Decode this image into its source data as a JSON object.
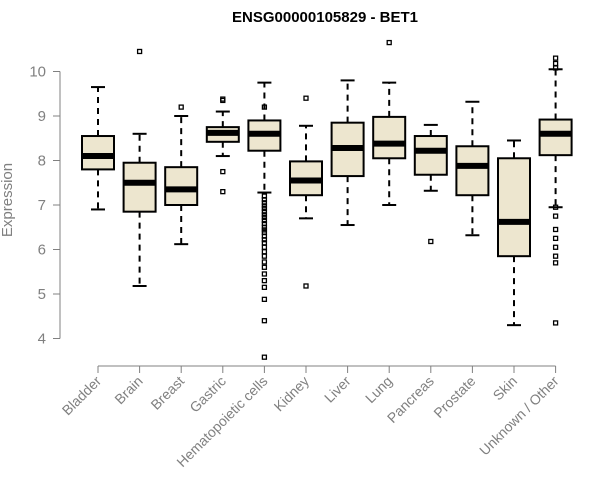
{
  "chart_data": {
    "type": "boxplot",
    "title": "ENSG00000105829 - BET1",
    "xlabel": "",
    "ylabel": "Expression",
    "ylim": [
      3.4,
      10.9
    ],
    "yticks": [
      4,
      5,
      6,
      7,
      8,
      9,
      10
    ],
    "box_color": "#ede6cf",
    "categories": [
      "Bladder",
      "Brain",
      "Breast",
      "Gastric",
      "Hematopoietic cells",
      "Kidney",
      "Liver",
      "Lung",
      "Pancreas",
      "Prostate",
      "Skin",
      "Unknown / Other"
    ],
    "boxes": [
      {
        "category": "Bladder",
        "whisker_low": 6.9,
        "q1": 7.8,
        "median": 8.1,
        "q3": 8.55,
        "whisker_high": 9.65,
        "outliers": []
      },
      {
        "category": "Brain",
        "whisker_low": 5.18,
        "q1": 6.85,
        "median": 7.5,
        "q3": 7.95,
        "whisker_high": 8.6,
        "outliers": [
          10.45
        ]
      },
      {
        "category": "Breast",
        "whisker_low": 6.12,
        "q1": 7.0,
        "median": 7.35,
        "q3": 7.85,
        "whisker_high": 9.0,
        "outliers": [
          9.2
        ]
      },
      {
        "category": "Gastric",
        "whisker_low": 8.1,
        "q1": 8.42,
        "median": 8.62,
        "q3": 8.75,
        "whisker_high": 9.1,
        "outliers": [
          9.38,
          9.35,
          7.75,
          7.3
        ]
      },
      {
        "category": "Hematopoietic cells",
        "whisker_low": 7.28,
        "q1": 8.22,
        "median": 8.6,
        "q3": 8.9,
        "whisker_high": 9.75,
        "outliers": [
          9.2,
          7.2,
          7.12,
          7.05,
          6.98,
          6.92,
          6.85,
          6.78,
          6.72,
          6.65,
          6.58,
          6.5,
          6.44,
          6.38,
          6.3,
          6.22,
          6.15,
          6.05,
          5.95,
          5.85,
          5.72,
          5.6,
          5.45,
          5.3,
          5.15,
          4.88,
          4.4,
          3.58
        ]
      },
      {
        "category": "Kidney",
        "whisker_low": 6.7,
        "q1": 7.22,
        "median": 7.55,
        "q3": 7.98,
        "whisker_high": 8.78,
        "outliers": [
          9.4,
          5.18
        ]
      },
      {
        "category": "Liver",
        "whisker_low": 6.55,
        "q1": 7.65,
        "median": 8.28,
        "q3": 8.85,
        "whisker_high": 9.8,
        "outliers": []
      },
      {
        "category": "Lung",
        "whisker_low": 7.0,
        "q1": 8.05,
        "median": 8.38,
        "q3": 8.98,
        "whisker_high": 9.75,
        "outliers": [
          10.65
        ]
      },
      {
        "category": "Pancreas",
        "whisker_low": 7.32,
        "q1": 7.68,
        "median": 8.22,
        "q3": 8.55,
        "whisker_high": 8.8,
        "outliers": [
          6.18
        ]
      },
      {
        "category": "Prostate",
        "whisker_low": 6.32,
        "q1": 7.22,
        "median": 7.88,
        "q3": 8.32,
        "whisker_high": 9.32,
        "outliers": []
      },
      {
        "category": "Skin",
        "whisker_low": 4.3,
        "q1": 5.85,
        "median": 6.62,
        "q3": 8.05,
        "whisker_high": 8.45,
        "outliers": []
      },
      {
        "category": "Unknown / Other",
        "whisker_low": 6.95,
        "q1": 8.12,
        "median": 8.6,
        "q3": 8.92,
        "whisker_high": 10.05,
        "outliers": [
          10.3,
          10.18,
          10.08,
          6.95,
          6.75,
          6.45,
          6.25,
          6.05,
          5.85,
          5.7,
          4.35
        ]
      }
    ]
  }
}
